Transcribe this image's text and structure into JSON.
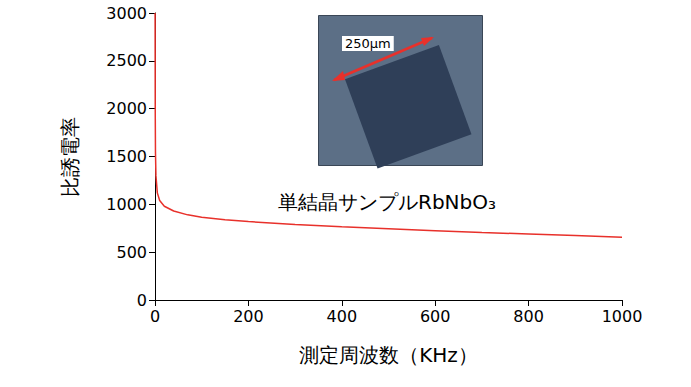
{
  "chart_data": {
    "type": "line",
    "x_label": "測定周波数（KHz）",
    "y_label": "比誘電率",
    "annotations": [
      {
        "text": "単結晶サンプルRbNbO₃"
      },
      {
        "text": "250μm"
      }
    ],
    "x": [
      0.2,
      0.5,
      1,
      2,
      5,
      10,
      20,
      40,
      70,
      100,
      150,
      200,
      300,
      400,
      500,
      600,
      700,
      800,
      900,
      1000
    ],
    "values": [
      3000,
      2000,
      1550,
      1300,
      1120,
      1040,
      980,
      930,
      890,
      865,
      840,
      820,
      790,
      765,
      745,
      725,
      705,
      690,
      675,
      655
    ],
    "color": "#e8312b",
    "xlim": [
      0,
      1000
    ],
    "xticks": [
      0,
      200,
      400,
      600,
      800,
      1000
    ],
    "ylim": [
      0,
      3000
    ],
    "yticks": [
      0,
      500,
      1000,
      1500,
      2000,
      2500,
      3000
    ],
    "grid": false
  }
}
